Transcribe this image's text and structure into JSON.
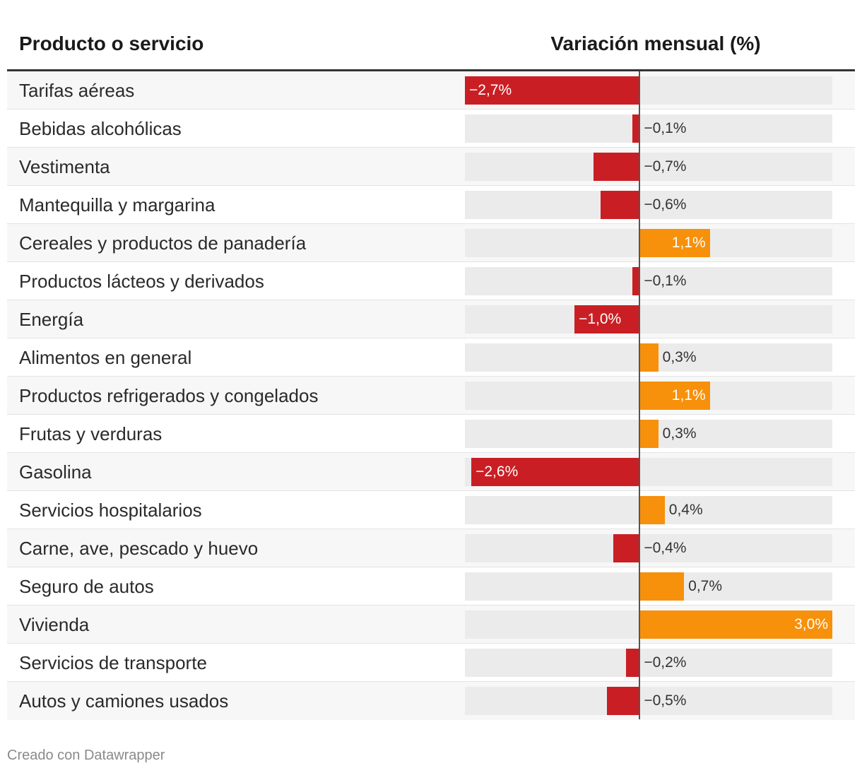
{
  "header": {
    "col_label": "Producto o servicio",
    "col_value": "Variación mensual (%)"
  },
  "footer": {
    "credit": "Creado con Datawrapper"
  },
  "colors": {
    "negative": "#c91f24",
    "positive": "#f7900a",
    "track": "#ebebeb"
  },
  "chart_data": {
    "type": "bar",
    "orientation": "horizontal",
    "title": "Variación mensual (%)",
    "xlim": [
      -2.7,
      3.0
    ],
    "categories": [
      "Tarifas aéreas",
      "Bebidas alcohólicas",
      "Vestimenta",
      "Mantequilla y margarina",
      "Cereales y productos de panadería",
      "Productos lácteos y derivados",
      "Energía",
      "Alimentos en general",
      "Productos refrigerados y congelados",
      "Frutas y verduras",
      "Gasolina",
      "Servicios hospitalarios",
      "Carne, ave, pescado y huevo",
      "Seguro de autos",
      "Vivienda",
      "Servicios de transporte",
      "Autos y camiones usados"
    ],
    "values": [
      -2.7,
      -0.1,
      -0.7,
      -0.6,
      1.1,
      -0.1,
      -1.0,
      0.3,
      1.1,
      0.3,
      -2.6,
      0.4,
      -0.4,
      0.7,
      3.0,
      -0.2,
      -0.5
    ],
    "value_labels": [
      "−2,7%",
      "−0,1%",
      "−0,7%",
      "−0,6%",
      "1,1%",
      "−0,1%",
      "−1,0%",
      "0,3%",
      "1,1%",
      "0,3%",
      "−2,6%",
      "0,4%",
      "−0,4%",
      "0,7%",
      "3,0%",
      "−0,2%",
      "−0,5%"
    ]
  }
}
